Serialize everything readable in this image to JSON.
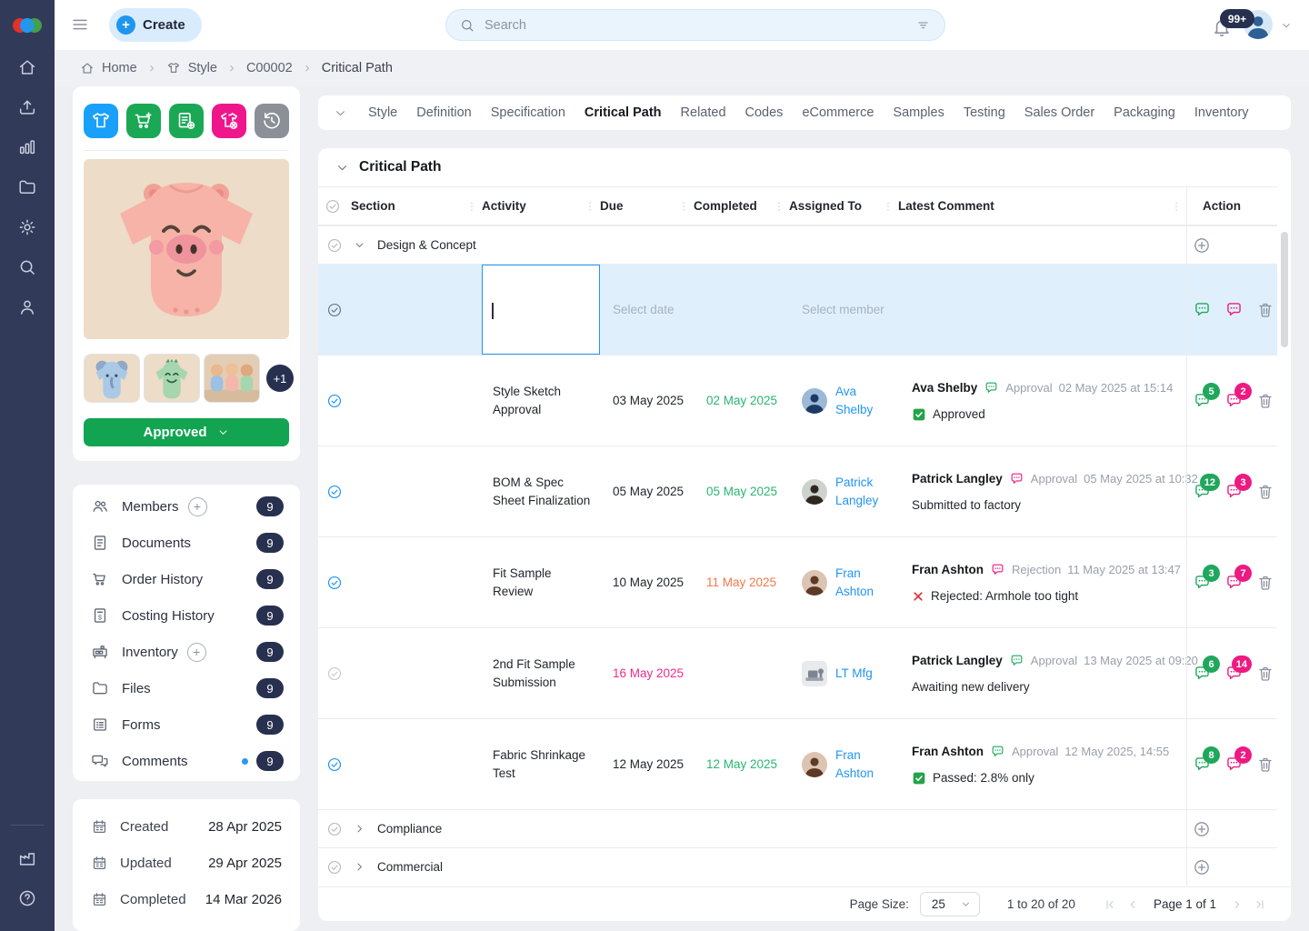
{
  "topbar": {
    "create_label": "Create",
    "search_placeholder": "Search",
    "notification_count": "99+"
  },
  "breadcrumb": [
    {
      "label": "Home",
      "icon": "home"
    },
    {
      "label": "Style",
      "icon": "shirt"
    },
    {
      "label": "C00002",
      "icon": null
    },
    {
      "label": "Critical Path",
      "icon": null
    }
  ],
  "sidebar_icons": [
    "home",
    "upload",
    "chart",
    "folder",
    "gear",
    "search",
    "person"
  ],
  "sidebar_bottom_icons": [
    "factory",
    "help"
  ],
  "product": {
    "action_icons": [
      {
        "name": "copy-style",
        "icon": "shirt",
        "color": "#18a0fb"
      },
      {
        "name": "add-to-order",
        "icon": "cartPlus",
        "color": "#1aa855"
      },
      {
        "name": "add-spec",
        "icon": "docPlus",
        "color": "#1aa855"
      },
      {
        "name": "drop-style",
        "icon": "shirtX",
        "color": "#ef168b"
      },
      {
        "name": "history",
        "icon": "history",
        "color": "#8a8f98"
      }
    ],
    "status_label": "Approved",
    "extra_thumbs": "+1"
  },
  "left_menu": [
    {
      "label": "Members",
      "icon": "members",
      "count": "9",
      "add": true,
      "dot": false
    },
    {
      "label": "Documents",
      "icon": "doc",
      "count": "9",
      "add": false,
      "dot": false
    },
    {
      "label": "Order History",
      "icon": "cart",
      "count": "9",
      "add": false,
      "dot": false
    },
    {
      "label": "Costing History",
      "icon": "costing",
      "count": "9",
      "add": false,
      "dot": false
    },
    {
      "label": "Inventory",
      "icon": "inventory",
      "count": "9",
      "add": true,
      "dot": false
    },
    {
      "label": "Files",
      "icon": "folder",
      "count": "9",
      "add": false,
      "dot": false
    },
    {
      "label": "Forms",
      "icon": "forms",
      "count": "9",
      "add": false,
      "dot": false
    },
    {
      "label": "Comments",
      "icon": "comments",
      "count": "9",
      "add": false,
      "dot": true
    }
  ],
  "dates": [
    {
      "label": "Created",
      "value": "28 Apr 2025"
    },
    {
      "label": "Updated",
      "value": "29 Apr 2025"
    },
    {
      "label": "Completed",
      "value": "14 Mar 2026"
    }
  ],
  "tabs": [
    "Style",
    "Definition",
    "Specification",
    "Critical Path",
    "Related",
    "Codes",
    "eCommerce",
    "Samples",
    "Testing",
    "Sales Order",
    "Packaging",
    "Inventory"
  ],
  "active_tab": "Critical Path",
  "panel": {
    "title": "Critical Path"
  },
  "table": {
    "headers": [
      "Section",
      "Activity",
      "Due",
      "Completed",
      "Assigned To",
      "Latest Comment",
      "Action"
    ],
    "rows": [
      {
        "type": "group",
        "label": "Design & Concept",
        "expanded": true
      },
      {
        "type": "edit",
        "date_placeholder": "Select date",
        "member_placeholder": "Select member"
      },
      {
        "type": "task",
        "checked": true,
        "activity": "Style Sketch Approval",
        "due": "03 May 2025",
        "due_state": "normal",
        "completed": "02 May 2025",
        "completed_state": "ontime",
        "assignee": {
          "name": "Ava Shelby",
          "avatar": "ava"
        },
        "comment": {
          "author": "Ava Shelby",
          "icon_color": "green",
          "kind": "Approval",
          "time": "02 May 2025 at 15:14",
          "body": "Approved",
          "body_icon": "check"
        },
        "badges": {
          "green": "5",
          "pink": "2"
        }
      },
      {
        "type": "task",
        "checked": true,
        "activity": "BOM & Spec Sheet Finalization",
        "due": "05 May 2025",
        "due_state": "normal",
        "completed": "05 May 2025",
        "completed_state": "ontime",
        "assignee": {
          "name": "Patrick Langley",
          "avatar": "patrick"
        },
        "comment": {
          "author": "Patrick Langley",
          "icon_color": "pink",
          "kind": "Approval",
          "time": "05 May 2025 at 10:32",
          "body": "Submitted to factory",
          "body_icon": "none"
        },
        "badges": {
          "green": "12",
          "pink": "3"
        }
      },
      {
        "type": "task",
        "checked": true,
        "activity": "Fit Sample Review",
        "due": "10 May 2025",
        "due_state": "normal",
        "completed": "11 May 2025",
        "completed_state": "late",
        "assignee": {
          "name": "Fran Ashton",
          "avatar": "fran"
        },
        "comment": {
          "author": "Fran Ashton",
          "icon_color": "pink",
          "kind": "Rejection",
          "time": "11 May 2025 at 13:47",
          "body": "Rejected: Armhole too tight",
          "body_icon": "x"
        },
        "badges": {
          "green": "3",
          "pink": "7"
        }
      },
      {
        "type": "task",
        "checked": false,
        "activity": "2nd Fit Sample Submission",
        "due": "16 May 2025",
        "due_state": "overdue",
        "completed": "",
        "completed_state": "none",
        "assignee": {
          "name": "LT Mfg",
          "avatar": "lt"
        },
        "comment": {
          "author": "Patrick Langley",
          "icon_color": "green",
          "kind": "Approval",
          "time": "13 May 2025 at 09:20",
          "body": "Awaiting new delivery",
          "body_icon": "none"
        },
        "badges": {
          "green": "6",
          "pink": "14"
        }
      },
      {
        "type": "task",
        "checked": true,
        "activity": "Fabric Shrinkage Test",
        "due": "12 May 2025",
        "due_state": "normal",
        "completed": "12 May 2025",
        "completed_state": "ontime",
        "assignee": {
          "name": "Fran Ashton",
          "avatar": "fran"
        },
        "comment": {
          "author": "Fran Ashton",
          "icon_color": "green",
          "kind": "Approval",
          "time": "12 May 2025, 14:55",
          "body": "Passed: 2.8% only",
          "body_icon": "check"
        },
        "badges": {
          "green": "8",
          "pink": "2"
        }
      },
      {
        "type": "group",
        "label": "Compliance",
        "expanded": false
      },
      {
        "type": "group",
        "label": "Commercial",
        "expanded": false
      }
    ]
  },
  "footer": {
    "page_size_label": "Page Size:",
    "page_size": "25",
    "range": "1 to 20 of 20",
    "page_label": "Page 1 of 1"
  },
  "colors": {
    "accent": "#2196f3",
    "green": "#1fa75c",
    "pink": "#ec1a82",
    "navy": "#27304f",
    "ontime": "#2bb673",
    "late": "#f2784b",
    "overdue": "#ee2b8e",
    "normal": "#23262e"
  }
}
